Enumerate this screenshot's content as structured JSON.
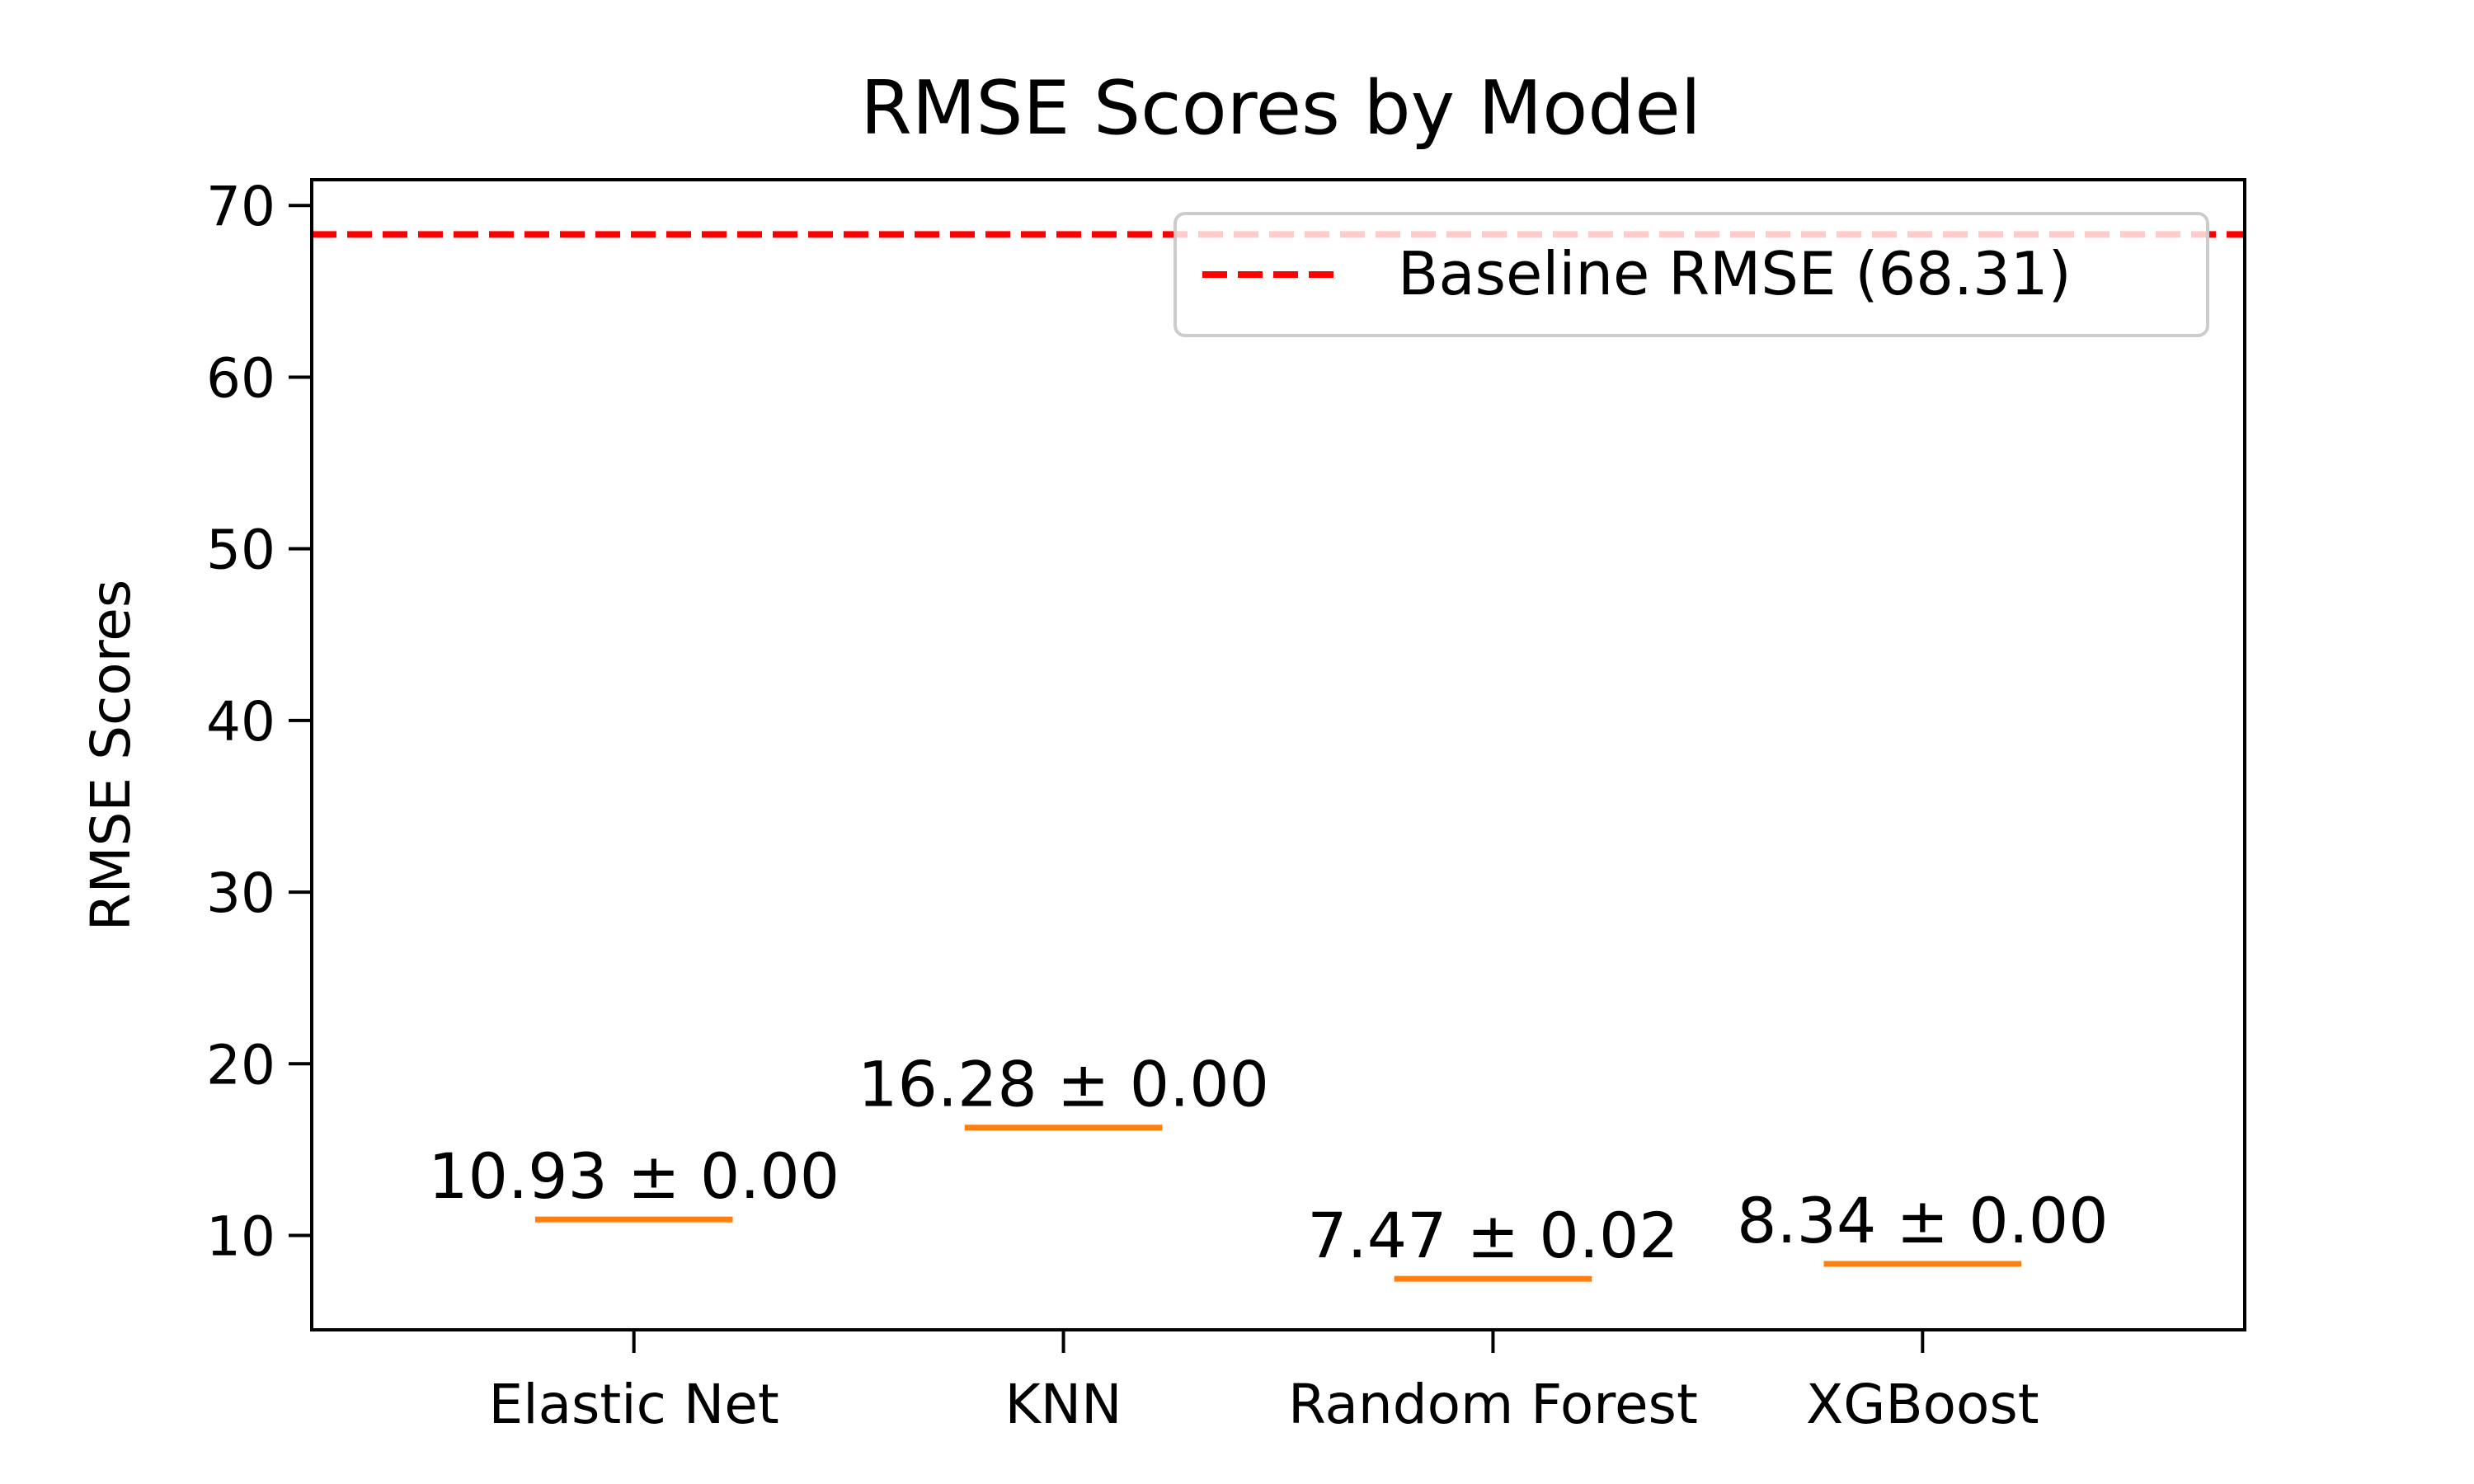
{
  "chart_data": {
    "type": "box",
    "title": "RMSE Scores by Model",
    "xlabel": "",
    "ylabel": "RMSE Scores",
    "categories": [
      "Elastic Net",
      "KNN",
      "Random Forest",
      "XGBoost"
    ],
    "values": [
      10.93,
      16.28,
      7.47,
      8.34
    ],
    "errors": [
      0.0,
      0.0,
      0.02,
      0.0
    ],
    "data_labels": [
      "10.93 ± 0.00",
      "16.28 ± 0.00",
      "7.47 ± 0.02",
      "8.34 ± 0.00"
    ],
    "ylim": [
      4.5,
      71.5
    ],
    "yticks": [
      10,
      20,
      30,
      40,
      50,
      60,
      70
    ],
    "grid": false,
    "baseline": {
      "value": 68.31,
      "label": "Baseline RMSE (68.31)",
      "style": "dashed"
    },
    "legend_position": "top-right",
    "colors": {
      "median_line": "#ff7f0e",
      "baseline": "#ff0000",
      "axes": "#000000"
    }
  }
}
